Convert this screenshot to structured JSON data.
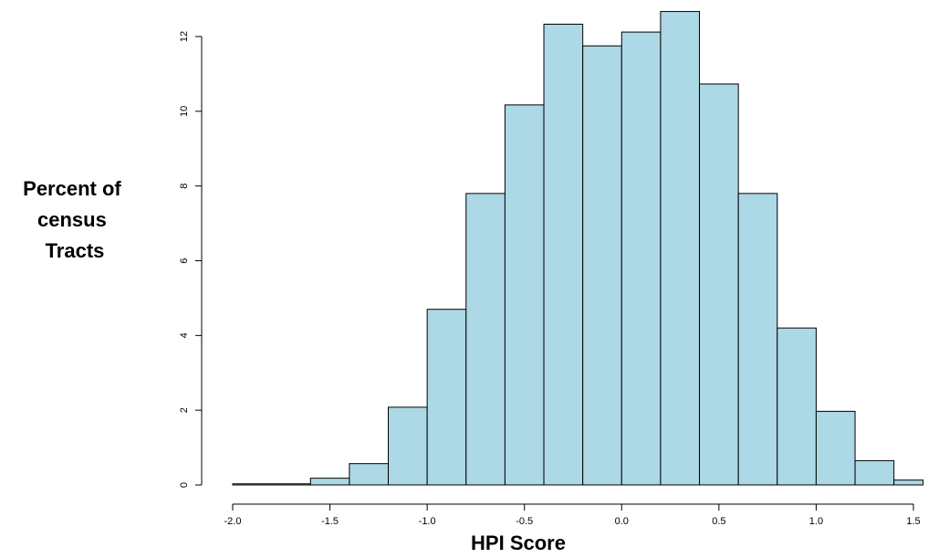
{
  "chart_data": {
    "type": "bar",
    "xlabel": "HPI Score",
    "ylabel_lines": [
      "Percent of",
      "census",
      "Tracts"
    ],
    "x_ticks": [
      "-2.0",
      "-1.5",
      "-1.0",
      "-0.5",
      "0.0",
      "0.5",
      "1.0",
      "1.5"
    ],
    "y_ticks": [
      "0",
      "2",
      "4",
      "6",
      "8",
      "10",
      "12"
    ],
    "xlim": [
      -2.0,
      1.55
    ],
    "ylim": [
      0,
      12
    ],
    "bins": [
      {
        "start": -2.0,
        "end": -1.6,
        "value": 0.03
      },
      {
        "start": -1.6,
        "end": -1.4,
        "value": 0.18
      },
      {
        "start": -1.4,
        "end": -1.2,
        "value": 0.57
      },
      {
        "start": -1.2,
        "end": -1.0,
        "value": 2.08
      },
      {
        "start": -1.0,
        "end": -0.8,
        "value": 4.7
      },
      {
        "start": -0.8,
        "end": -0.6,
        "value": 7.8
      },
      {
        "start": -0.6,
        "end": -0.4,
        "value": 10.17
      },
      {
        "start": -0.4,
        "end": -0.2,
        "value": 12.33
      },
      {
        "start": -0.2,
        "end": 0.0,
        "value": 11.75
      },
      {
        "start": 0.0,
        "end": 0.2,
        "value": 12.12
      },
      {
        "start": 0.2,
        "end": 0.4,
        "value": 12.67
      },
      {
        "start": 0.4,
        "end": 0.6,
        "value": 10.73
      },
      {
        "start": 0.6,
        "end": 0.8,
        "value": 7.8
      },
      {
        "start": 0.8,
        "end": 1.0,
        "value": 4.2
      },
      {
        "start": 1.0,
        "end": 1.2,
        "value": 1.97
      },
      {
        "start": 1.2,
        "end": 1.4,
        "value": 0.65
      },
      {
        "start": 1.4,
        "end": 1.55,
        "value": 0.13
      }
    ],
    "bar_color": "#add8e6",
    "grid": false
  }
}
